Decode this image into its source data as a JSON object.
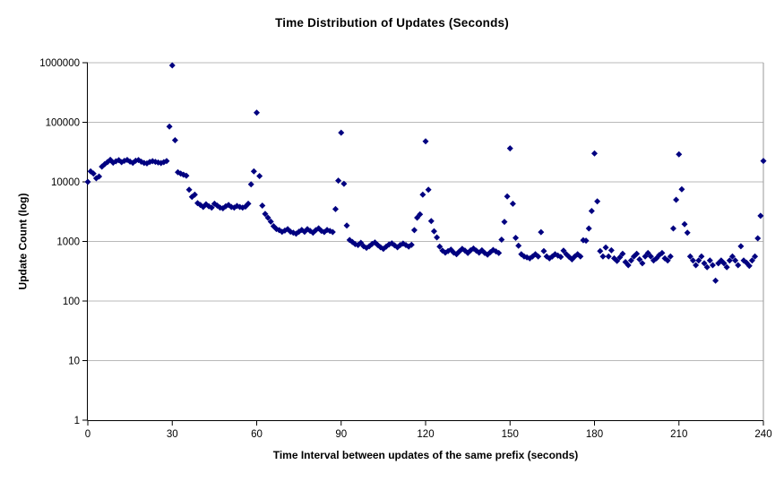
{
  "chart_data": {
    "type": "scatter",
    "title": "Time Distribution of Updates (Seconds)",
    "xlabel": "Time Interval between updates of the same prefix (seconds)",
    "ylabel": "Update Count (log)",
    "x_start": 0,
    "x_step": 1,
    "xlim": [
      0,
      240
    ],
    "x_ticks": [
      0,
      30,
      60,
      90,
      120,
      150,
      180,
      210,
      240
    ],
    "y_scale": "log",
    "ylim": [
      1,
      1000000
    ],
    "y_ticks": [
      1,
      10,
      100,
      1000,
      10000,
      100000,
      1000000
    ],
    "grid": "horizontal",
    "legend": "none",
    "marker": {
      "shape": "diamond",
      "color": "#000080",
      "size": 7
    },
    "axis_color": "#000000",
    "gridline_color": "#b9b9b9",
    "border_color": "#9a9a9a",
    "values": [
      10000,
      15000,
      13800,
      11500,
      12300,
      18000,
      19800,
      21500,
      23500,
      21000,
      22200,
      23200,
      21400,
      22600,
      23400,
      21900,
      20900,
      22700,
      23300,
      21800,
      20800,
      20400,
      21600,
      22300,
      21700,
      21100,
      20700,
      21400,
      22400,
      85000,
      900000,
      50000,
      14500,
      13800,
      13200,
      12700,
      7400,
      5600,
      6100,
      4400,
      4100,
      3800,
      4200,
      3900,
      3700,
      4300,
      4000,
      3700,
      3600,
      3900,
      4100,
      3800,
      3700,
      3950,
      3800,
      3700,
      3850,
      4300,
      9100,
      15000,
      145000,
      12500,
      4000,
      2900,
      2500,
      2150,
      1800,
      1620,
      1550,
      1450,
      1520,
      1610,
      1460,
      1400,
      1350,
      1460,
      1560,
      1450,
      1610,
      1500,
      1400,
      1550,
      1660,
      1500,
      1440,
      1560,
      1500,
      1440,
      3500,
      10500,
      67000,
      9300,
      1850,
      1060,
      980,
      900,
      870,
      950,
      830,
      780,
      830,
      910,
      960,
      870,
      800,
      750,
      820,
      890,
      930,
      860,
      800,
      870,
      920,
      870,
      820,
      880,
      1550,
      2500,
      2850,
      6100,
      48000,
      7400,
      2200,
      1480,
      1170,
      820,
      700,
      650,
      690,
      730,
      650,
      610,
      680,
      750,
      700,
      640,
      710,
      760,
      700,
      650,
      710,
      640,
      600,
      660,
      720,
      680,
      640,
      1070,
      2130,
      5700,
      36500,
      4300,
      1150,
      850,
      610,
      560,
      540,
      520,
      560,
      610,
      560,
      1430,
      690,
      560,
      520,
      560,
      610,
      580,
      550,
      700,
      610,
      550,
      500,
      560,
      610,
      560,
      1050,
      1030,
      1650,
      3250,
      30000,
      4700,
      690,
      560,
      790,
      560,
      710,
      520,
      470,
      540,
      620,
      450,
      400,
      480,
      560,
      620,
      500,
      430,
      560,
      640,
      560,
      480,
      520,
      590,
      640,
      520,
      480,
      560,
      1650,
      5000,
      29000,
      7500,
      1950,
      1400,
      560,
      480,
      400,
      480,
      560,
      430,
      370,
      480,
      400,
      220,
      430,
      480,
      430,
      370,
      480,
      560,
      480,
      400,
      830,
      480,
      440,
      390,
      480,
      560,
      1130,
      2700,
      22500
    ]
  }
}
